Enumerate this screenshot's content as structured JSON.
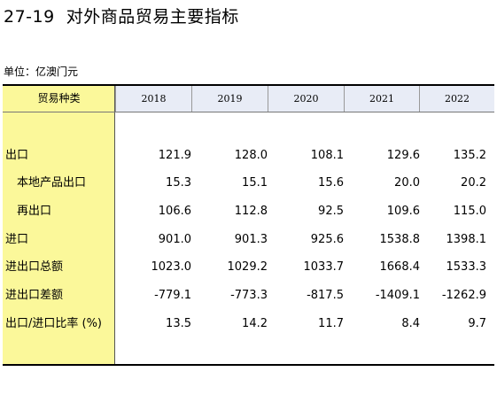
{
  "title": "27-19  对外商品贸易主要指标",
  "unit": "单位：亿澳门元",
  "table": {
    "category_header": "贸易种类",
    "years": [
      "2018",
      "2019",
      "2020",
      "2021",
      "2022"
    ],
    "rows": [
      {
        "label": "出口",
        "values": [
          "121.9",
          "128.0",
          "108.1",
          "129.6",
          "135.2"
        ]
      },
      {
        "label": "本地产品出口",
        "values": [
          "15.3",
          "15.1",
          "15.6",
          "20.0",
          "20.2"
        ]
      },
      {
        "label": "再出口",
        "values": [
          "106.6",
          "112.8",
          "92.5",
          "109.6",
          "115.0"
        ]
      },
      {
        "label": "进口",
        "values": [
          "901.0",
          "901.3",
          "925.6",
          "1538.8",
          "1398.1"
        ]
      },
      {
        "label": "进出口总额",
        "values": [
          "1023.0",
          "1029.2",
          "1033.7",
          "1668.4",
          "1533.3"
        ]
      },
      {
        "label": "进出口差额",
        "values": [
          "-779.1",
          "-773.3",
          "-817.5",
          "-1409.1",
          "-1262.9"
        ]
      },
      {
        "label": "出口/进口比率 (%)",
        "values": [
          "13.5",
          "14.2",
          "11.7",
          "8.4",
          "9.7"
        ]
      }
    ]
  }
}
